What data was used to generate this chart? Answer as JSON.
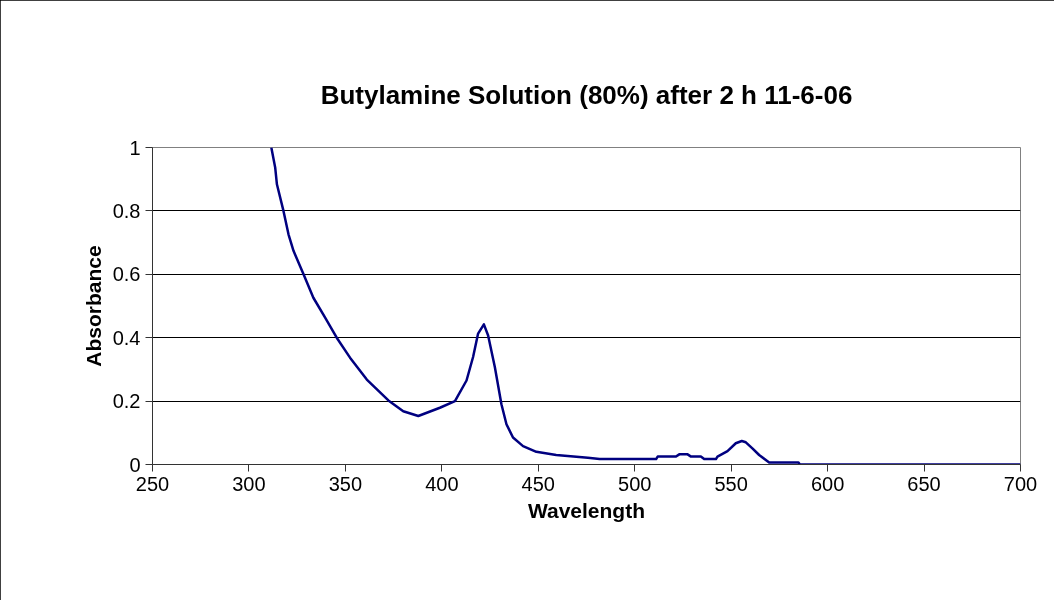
{
  "chart_data": {
    "type": "line",
    "title": "Butylamine Solution (80%) after 2 h 11-6-06",
    "xlabel": "Wavelength",
    "ylabel": "Absorbance",
    "xlim": [
      250,
      700
    ],
    "xticks": [
      250,
      300,
      350,
      400,
      450,
      500,
      550,
      600,
      650,
      700
    ],
    "ylim": [
      0,
      1
    ],
    "yticks": [
      0,
      0.2,
      0.4,
      0.6,
      0.8,
      1
    ],
    "grid": "y",
    "marker": "none",
    "line_style": "solid",
    "series": [
      {
        "color": "#000080",
        "x": [
          311.6,
          313.6,
          314.5,
          317.9,
          320.5,
          323.1,
          328.3,
          333.4,
          339.5,
          345.5,
          352.4,
          361.1,
          372.3,
          380,
          387.8,
          399,
          406.8,
          412.8,
          416.2,
          418.8,
          421.8,
          424,
          427.5,
          430.9,
          433.5,
          436.9,
          442.1,
          449,
          459.3,
          475.7,
          481.8,
          511.1,
          511.9,
          521.4,
          523.1,
          527.4,
          529.2,
          534.3,
          536,
          542.1,
          542.9,
          548.1,
          552.4,
          555.5,
          557.6,
          561,
          564.5,
          569.7,
          584.9,
          585.6,
          700
        ],
        "values": [
          1.0,
          0.937,
          0.884,
          0.8,
          0.726,
          0.674,
          0.6,
          0.526,
          0.463,
          0.4,
          0.337,
          0.268,
          0.202,
          0.168,
          0.153,
          0.179,
          0.2,
          0.265,
          0.339,
          0.413,
          0.442,
          0.407,
          0.307,
          0.19,
          0.127,
          0.085,
          0.058,
          0.04,
          0.03,
          0.021,
          0.017,
          0.017,
          0.025,
          0.025,
          0.032,
          0.032,
          0.025,
          0.025,
          0.017,
          0.017,
          0.025,
          0.042,
          0.067,
          0.074,
          0.07,
          0.051,
          0.03,
          0.006,
          0.006,
          0,
          0
        ]
      }
    ]
  }
}
